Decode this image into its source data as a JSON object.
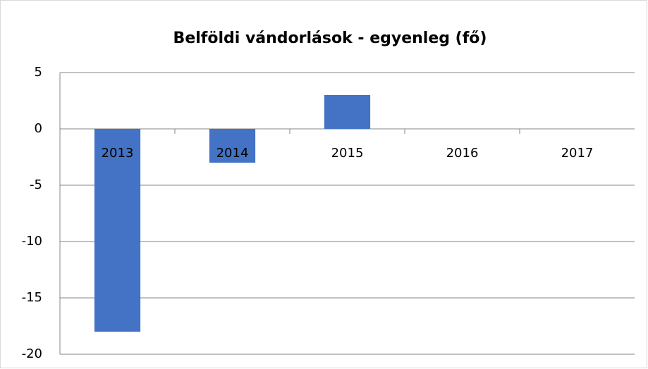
{
  "chart_data": {
    "type": "bar",
    "title": "Belföldi vándorlások - egyenleg (fő)",
    "categories": [
      "2013",
      "2014",
      "2015",
      "2016",
      "2017"
    ],
    "values": [
      -18,
      -3,
      3,
      0,
      0
    ],
    "color": "#4472c4",
    "ylim": [
      -20,
      5
    ],
    "yticks": [
      5,
      0,
      -5,
      -10,
      -15,
      -20
    ],
    "grid": true
  }
}
